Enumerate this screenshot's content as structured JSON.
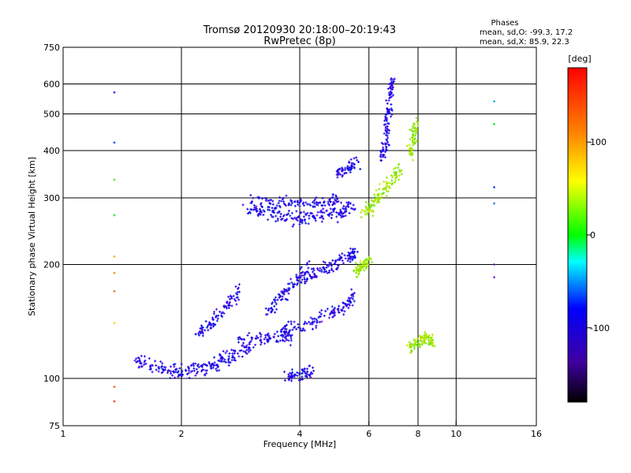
{
  "chart_data": {
    "type": "scatter",
    "title": "Tromsø 20120930 20:18:00–20:19:43",
    "subtitle": "RwPretec (8p)",
    "xlabel": "Frequency [MHz]",
    "ylabel": "Stationary phase Virtual Height [km]",
    "x_scale": "log2",
    "y_scale": "log",
    "xlim": [
      1,
      16
    ],
    "ylim": [
      75,
      750
    ],
    "x_ticks": [
      1,
      2,
      4,
      6,
      8,
      10,
      16
    ],
    "y_ticks": [
      75,
      100,
      200,
      300,
      400,
      500,
      600,
      750
    ],
    "grid": true,
    "phases_header": "Phases",
    "phases_o": "mean, sd,O:  -99.3, 17.2",
    "phases_x": "mean, sd,X:  85.9, 22.3",
    "colorbar": {
      "unit": "[deg]",
      "range": [
        -180,
        180
      ],
      "ticks": [
        100,
        0,
        -100
      ]
    },
    "series": [
      {
        "type": "traces",
        "color_deg": -100,
        "segments": [
          {
            "x": [
              2.9,
              3.3,
              3.7,
              4.1,
              4.6,
              5.1,
              5.5
            ],
            "y": [
              280,
              275,
              268,
              265,
              268,
              275,
              285
            ]
          },
          {
            "x": [
              3.0,
              3.5,
              4.0,
              4.6,
              5.0
            ],
            "y": [
              295,
              293,
              290,
              288,
              300
            ]
          },
          {
            "x": [
              1.5,
              1.7,
              1.9,
              2.1,
              2.3,
              2.5,
              2.7,
              3.0
            ],
            "y": [
              112,
              108,
              105,
              104,
              107,
              110,
              115,
              120
            ]
          },
          {
            "x": [
              2.8,
              3.2,
              3.6,
              3.8
            ],
            "y": [
              125,
              128,
              130,
              128
            ]
          },
          {
            "x": [
              3.6,
              4.2,
              4.8,
              5.2,
              5.5
            ],
            "y": [
              135,
              140,
              148,
              155,
              165
            ]
          },
          {
            "x": [
              3.7,
              4.0,
              4.3
            ],
            "y": [
              100,
              102,
              104
            ]
          },
          {
            "x": [
              3.3,
              3.6,
              3.9,
              4.2
            ],
            "y": [
              150,
              165,
              180,
              200
            ]
          },
          {
            "x": [
              4.0,
              4.4,
              4.9,
              5.3,
              5.6
            ],
            "y": [
              180,
              190,
              200,
              210,
              215
            ]
          },
          {
            "x": [
              5.0,
              5.3,
              5.6
            ],
            "y": [
              350,
              360,
              370
            ]
          },
          {
            "x": [
              6.5,
              6.6,
              6.7,
              6.8,
              6.9
            ],
            "y": [
              380,
              420,
              480,
              560,
              620
            ]
          },
          {
            "x": [
              2.2,
              2.4,
              2.6,
              2.8
            ],
            "y": [
              130,
              140,
              155,
              170
            ]
          }
        ]
      },
      {
        "type": "traces",
        "color_deg": 90,
        "segments": [
          {
            "x": [
              5.8,
              6.1,
              6.4,
              6.8,
              7.2
            ],
            "y": [
              270,
              285,
              305,
              330,
              360
            ]
          },
          {
            "x": [
              7.6,
              7.8,
              7.9
            ],
            "y": [
              380,
              430,
              480
            ]
          },
          {
            "x": [
              5.5,
              5.8,
              6.0
            ],
            "y": [
              190,
              200,
              205
            ]
          },
          {
            "x": [
              7.6,
              8.0,
              8.4,
              8.8
            ],
            "y": [
              120,
              125,
              128,
              125
            ]
          }
        ]
      },
      {
        "type": "points",
        "x": 1.35,
        "y": [
          570,
          420,
          335,
          270,
          210,
          190,
          170,
          140,
          95,
          87
        ],
        "color_deg": [
          -90,
          -80,
          60,
          40,
          130,
          140,
          150,
          120,
          160,
          170
        ]
      },
      {
        "type": "points",
        "x": 12.5,
        "y": [
          540,
          470,
          320,
          290,
          200,
          185
        ],
        "color_deg": [
          -40,
          40,
          -80,
          -60,
          -140,
          -130
        ]
      }
    ]
  }
}
